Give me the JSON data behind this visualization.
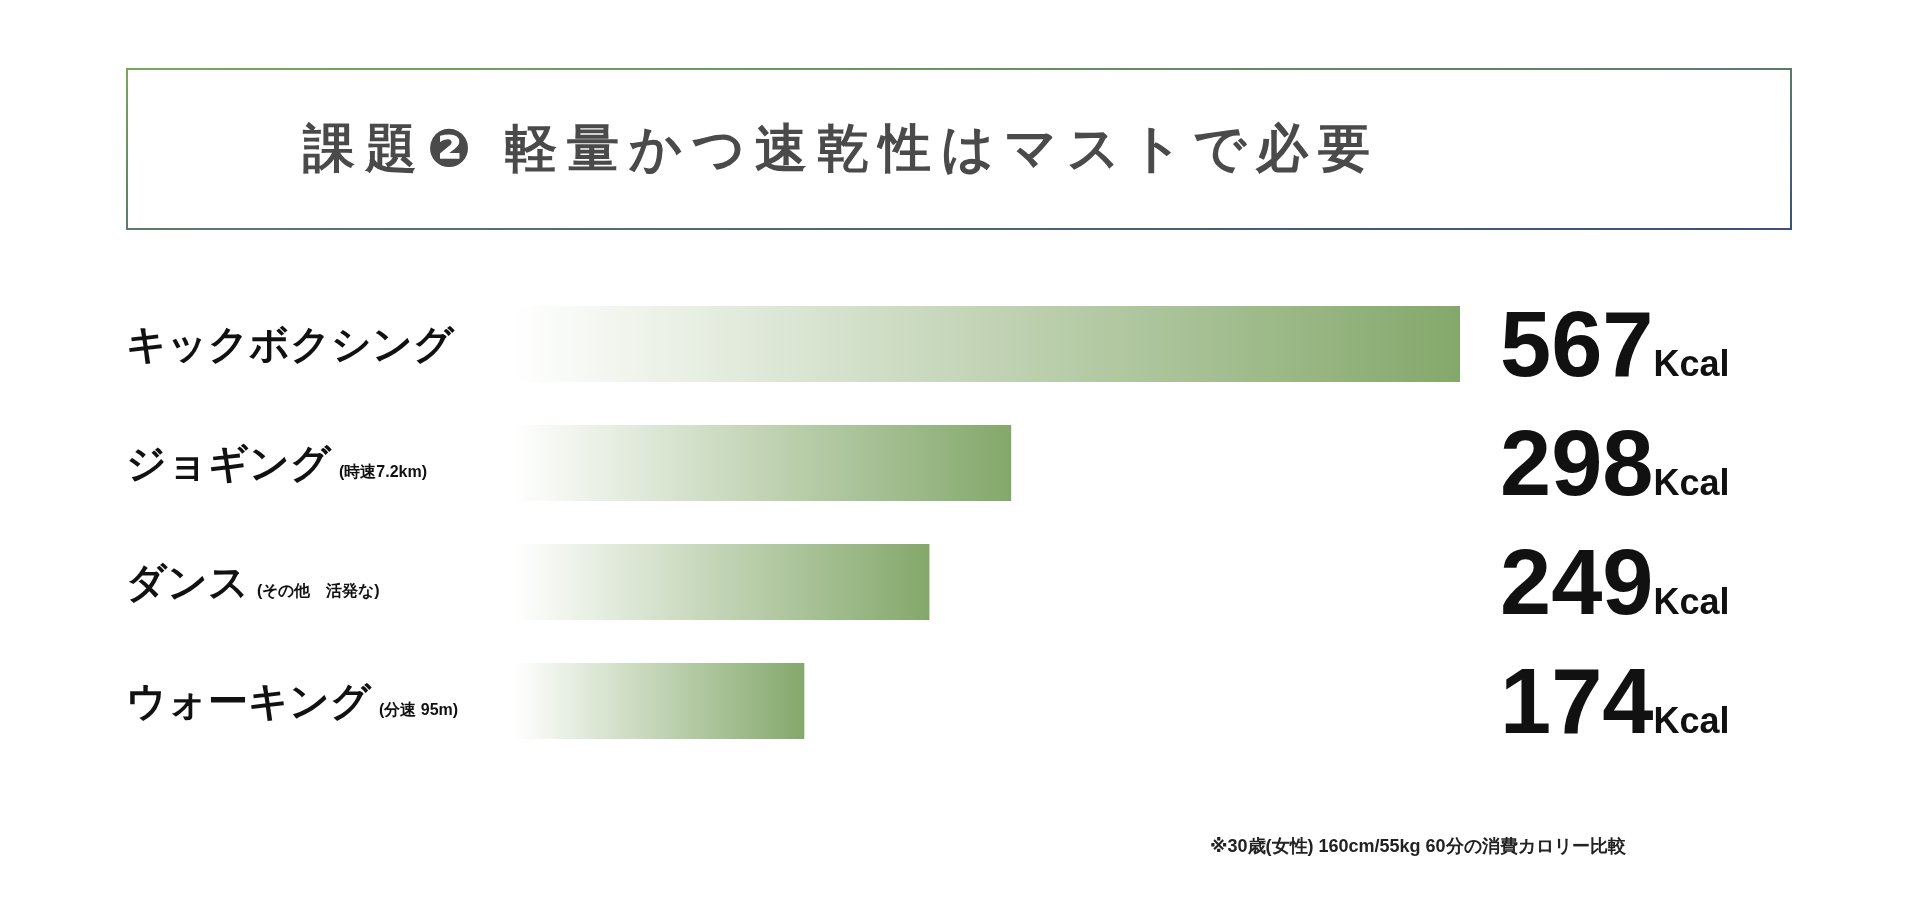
{
  "chart_data": {
    "type": "bar",
    "orientation": "horizontal",
    "title": "課題❷ 軽量かつ速乾性はマストで必要",
    "categories": [
      "キックボクシング",
      "ジョギング (時速7.2km)",
      "ダンス (その他　活発な)",
      "ウォーキング (分速 95m)"
    ],
    "values": [
      567,
      298,
      249,
      174
    ],
    "color": "#84a86b",
    "value_labels": [
      "567Kcal",
      "298Kcal",
      "249Kcal",
      "174Kcal"
    ],
    "annotations": [
      "※30歳(女性) 160cm/55kg 60分の消費カロリー比較"
    ]
  }
}
